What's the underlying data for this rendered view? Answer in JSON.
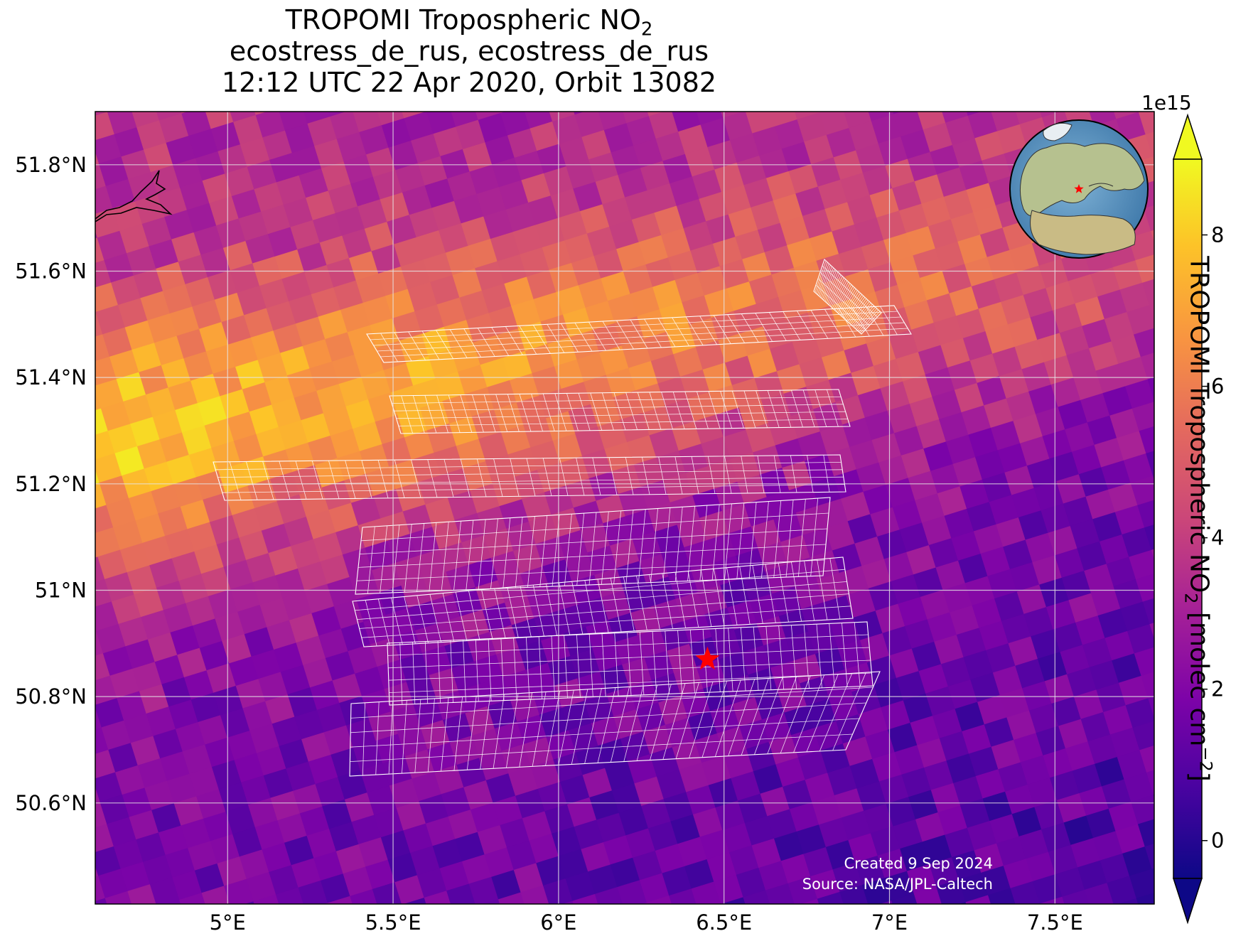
{
  "title": {
    "line1_prefix": "TROPOMI Tropospheric NO",
    "line1_sub": "2",
    "line2": "ecostress_de_rus, ecostress_de_rus",
    "line3": "12:12 UTC 22 Apr 2020, Orbit 13082"
  },
  "map": {
    "lon_range": [
      4.6,
      7.8
    ],
    "lat_range": [
      50.41,
      51.9
    ],
    "x_ticks": [
      {
        "lon": 5.0,
        "label": "5°E"
      },
      {
        "lon": 5.5,
        "label": "5.5°E"
      },
      {
        "lon": 6.0,
        "label": "6°E"
      },
      {
        "lon": 6.5,
        "label": "6.5°E"
      },
      {
        "lon": 7.0,
        "label": "7°E"
      },
      {
        "lon": 7.5,
        "label": "7.5°E"
      }
    ],
    "y_ticks": [
      {
        "lat": 51.8,
        "label": "51.8°N"
      },
      {
        "lat": 51.6,
        "label": "51.6°N"
      },
      {
        "lat": 51.4,
        "label": "51.4°N"
      },
      {
        "lat": 51.2,
        "label": "51.2°N"
      },
      {
        "lat": 51.0,
        "label": "51°N"
      },
      {
        "lat": 50.8,
        "label": "50.8°N"
      },
      {
        "lat": 50.6,
        "label": "50.6°N"
      }
    ],
    "grid": true,
    "site_marker": {
      "lon": 6.45,
      "lat": 50.87,
      "symbol": "star",
      "color": "#ff0000"
    },
    "colormap": "plasma",
    "footprint_outline_color": "#ffffff",
    "inset_globe": {
      "position": "top-right",
      "marker": "red star over western Germany"
    }
  },
  "colorbar": {
    "label_prefix": "TROPOMI Tropospheric NO",
    "label_sub": "2",
    "label_units_prefix": " [molec cm",
    "label_units_sup": "−2",
    "label_units_suffix": "]",
    "exponent": "1e15",
    "range": [
      -0.5,
      9
    ],
    "ticks": [
      {
        "value": 0,
        "label": "0"
      },
      {
        "value": 2,
        "label": "2"
      },
      {
        "value": 4,
        "label": "4"
      },
      {
        "value": 6,
        "label": "6"
      },
      {
        "value": 8,
        "label": "8"
      }
    ],
    "extend": "both"
  },
  "credits": {
    "created": "Created 9 Sep 2024",
    "source": "Source: NASA/JPL-Caltech"
  }
}
